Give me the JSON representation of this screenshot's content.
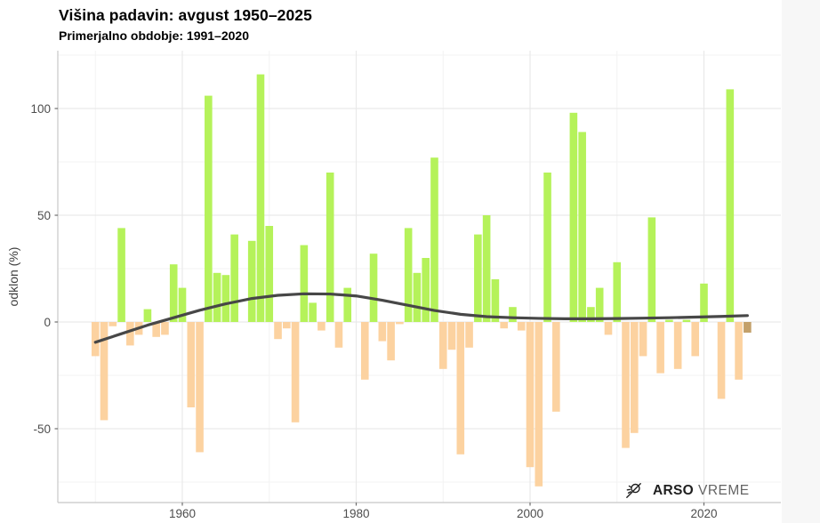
{
  "header": {
    "title": "Višina padavin: avgust 1950–2025",
    "subtitle": "Primerjalno obdobje: 1991–2020"
  },
  "y_axis": {
    "title": "odklon (%)",
    "ticks": [
      100,
      50,
      0,
      -50
    ],
    "minor_gridlines": [
      125,
      75,
      25,
      -25,
      -75
    ]
  },
  "x_axis": {
    "ticks": [
      1960,
      1980,
      2000,
      2020
    ],
    "minor_gridlines": [
      1950,
      1970,
      1990,
      2010
    ]
  },
  "logo": {
    "brand": "ARSO",
    "suffix": "VREME"
  },
  "colors": {
    "positive_bar": "#b5f25a",
    "negative_bar": "#fcd2a0",
    "current_year_bar": "#c3a06a",
    "trend_line": "#474747",
    "grid_major": "#e9e9e9",
    "grid_minor": "#f3f3f3",
    "axis_line": "#c8c8c8",
    "tick_mark": "#6e6e6e",
    "tick_text": "#4d4d4d",
    "right_margin": "#f7f7f7"
  },
  "chart_data": {
    "type": "bar",
    "title": "Višina padavin: avgust 1950–2025",
    "subtitle": "Primerjalno obdobje: 1991–2020",
    "xlabel": "",
    "ylabel": "odklon (%)",
    "x_range": [
      1950,
      2025
    ],
    "ylim": [
      -85,
      127
    ],
    "grid": true,
    "years": [
      1950,
      1951,
      1952,
      1953,
      1954,
      1955,
      1956,
      1957,
      1958,
      1959,
      1960,
      1961,
      1962,
      1963,
      1964,
      1965,
      1966,
      1967,
      1968,
      1969,
      1970,
      1971,
      1972,
      1973,
      1974,
      1975,
      1976,
      1977,
      1978,
      1979,
      1980,
      1981,
      1982,
      1983,
      1984,
      1985,
      1986,
      1987,
      1988,
      1989,
      1990,
      1991,
      1992,
      1993,
      1994,
      1995,
      1996,
      1997,
      1998,
      1999,
      2000,
      2001,
      2002,
      2003,
      2004,
      2005,
      2006,
      2007,
      2008,
      2009,
      2010,
      2011,
      2012,
      2013,
      2014,
      2015,
      2016,
      2017,
      2018,
      2019,
      2020,
      2021,
      2022,
      2023,
      2024,
      2025
    ],
    "values": [
      -16,
      -46,
      -2,
      44,
      -11,
      -6,
      6,
      -7,
      -6,
      27,
      16,
      -40,
      -61,
      106,
      23,
      22,
      41,
      0,
      38,
      116,
      45,
      -8,
      -3,
      -47,
      36,
      9,
      -4,
      70,
      -12,
      16,
      0,
      -27,
      32,
      -9,
      -18,
      -1,
      44,
      23,
      30,
      77,
      -22,
      -13,
      -62,
      -12,
      41,
      50,
      20,
      -3,
      7,
      -4,
      -68,
      -77,
      70,
      -42,
      0,
      98,
      89,
      7,
      16,
      -6,
      28,
      -59,
      -52,
      -16,
      49,
      -24,
      1,
      -22,
      1,
      -16,
      18,
      0,
      -36,
      109,
      -27,
      -5
    ],
    "highlight_year": 2025,
    "color_rule": "positive years green, negative years orange, 2025 (current) brown",
    "trend_line": {
      "description": "smoothed long-term trend",
      "points": [
        [
          1950,
          -9.5
        ],
        [
          1953,
          -5.5
        ],
        [
          1956,
          -1.5
        ],
        [
          1959,
          2
        ],
        [
          1962,
          5.5
        ],
        [
          1965,
          8.5
        ],
        [
          1968,
          11
        ],
        [
          1971,
          12.5
        ],
        [
          1974,
          13.2
        ],
        [
          1977,
          13.1
        ],
        [
          1980,
          12.2
        ],
        [
          1983,
          10.2
        ],
        [
          1986,
          7.8
        ],
        [
          1989,
          5.4
        ],
        [
          1992,
          3.6
        ],
        [
          1995,
          2.5
        ],
        [
          1998,
          2
        ],
        [
          2001,
          1.7
        ],
        [
          2004,
          1.5
        ],
        [
          2007,
          1.5
        ],
        [
          2010,
          1.6
        ],
        [
          2013,
          1.8
        ],
        [
          2016,
          2
        ],
        [
          2019,
          2.3
        ],
        [
          2022,
          2.6
        ],
        [
          2025,
          3
        ]
      ]
    },
    "legend_position": "none"
  }
}
